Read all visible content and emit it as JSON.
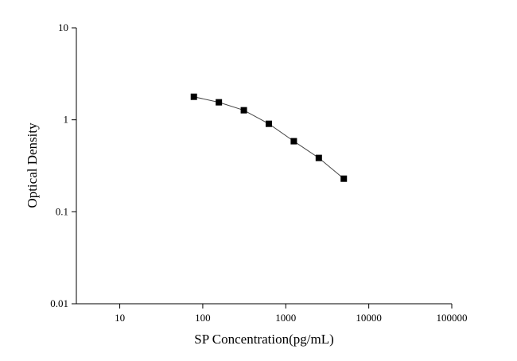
{
  "chart_data": {
    "type": "scatter",
    "x_label": "SP Concentration(pg/mL)",
    "y_label": "Optical Density",
    "x": [
      78.125,
      156.25,
      312.5,
      625,
      1250,
      2500,
      5000
    ],
    "series": [
      {
        "color": "#000000",
        "values": [
          1.78,
          1.55,
          1.27,
          0.905,
          0.585,
          0.385,
          0.229
        ]
      }
    ],
    "xlim": [
      3,
      100000
    ],
    "xticks": [
      10,
      100,
      1000,
      10000,
      100000
    ],
    "ylim": [
      0.01,
      10
    ],
    "yticks": [
      0.01,
      0.1,
      1,
      10
    ],
    "xlog": true,
    "ylog": true,
    "grid": false
  }
}
